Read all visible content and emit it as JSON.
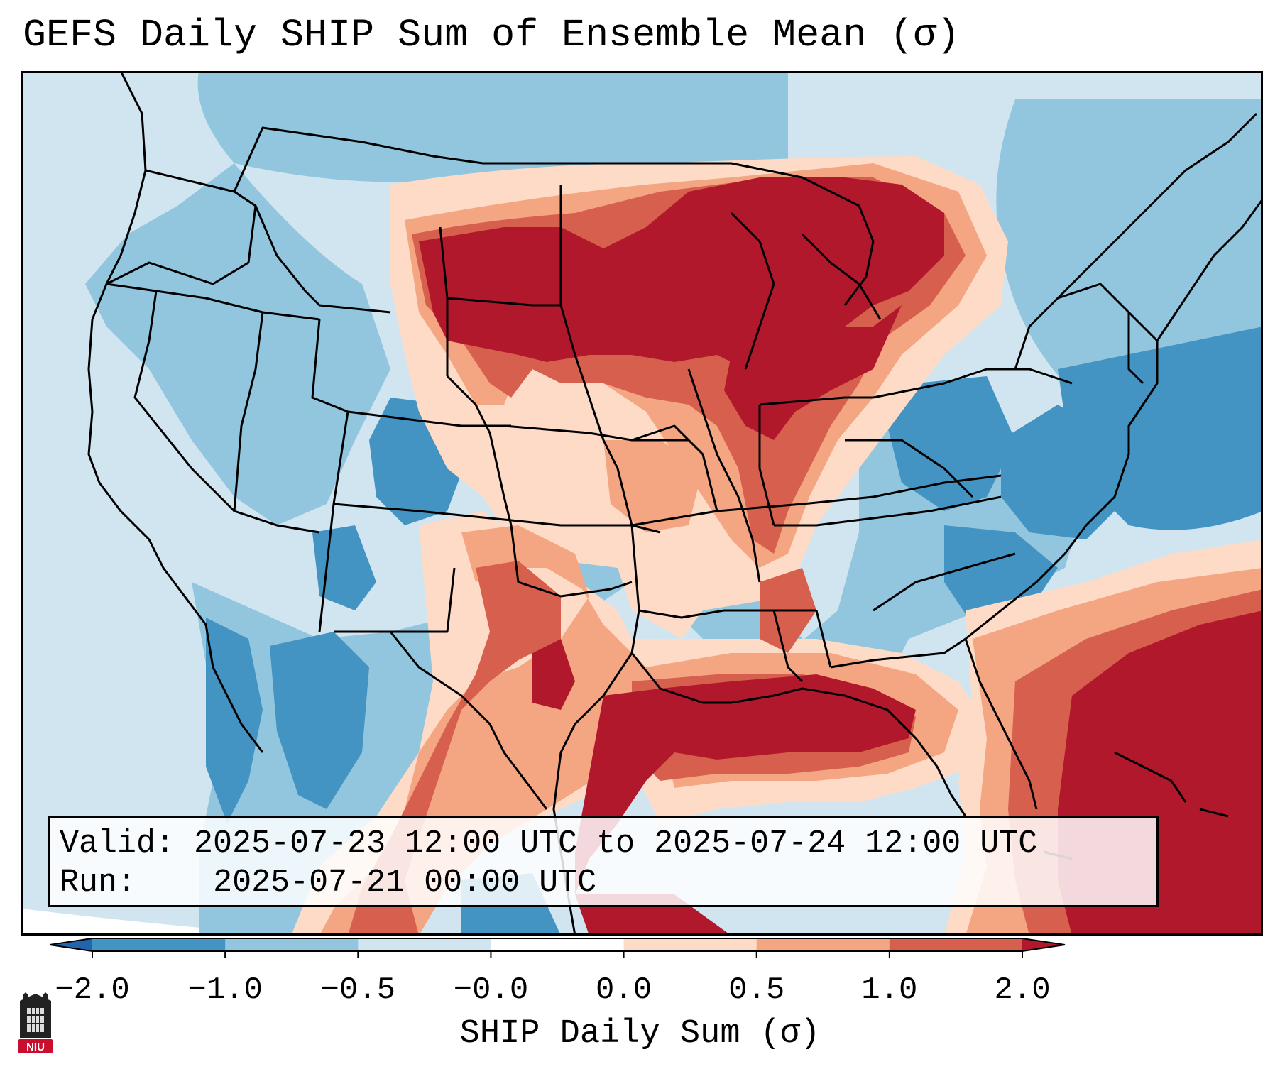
{
  "title": "GEFS Daily SHIP Sum of Ensemble Mean (σ)",
  "info": {
    "valid_label": "Valid:",
    "valid_value": "2025-07-23 12:00 UTC to 2025-07-24 12:00 UTC",
    "run_label": "Run:",
    "run_value": "2025-07-21 00:00 UTC"
  },
  "colorbar": {
    "label": "SHIP Daily Sum (σ)",
    "ticks": [
      "−2.0",
      "−1.0",
      "−0.5",
      "−0.0",
      "0.0",
      "0.5",
      "1.0",
      "2.0"
    ],
    "colors": [
      "#2166ac",
      "#4393c3",
      "#92c5de",
      "#d1e5f0",
      "#fddbc7",
      "#f4a582",
      "#d6604d",
      "#b2182b"
    ],
    "extend": "both"
  },
  "logo": {
    "text": "NIU",
    "icon": "niu-logo-icon"
  }
}
